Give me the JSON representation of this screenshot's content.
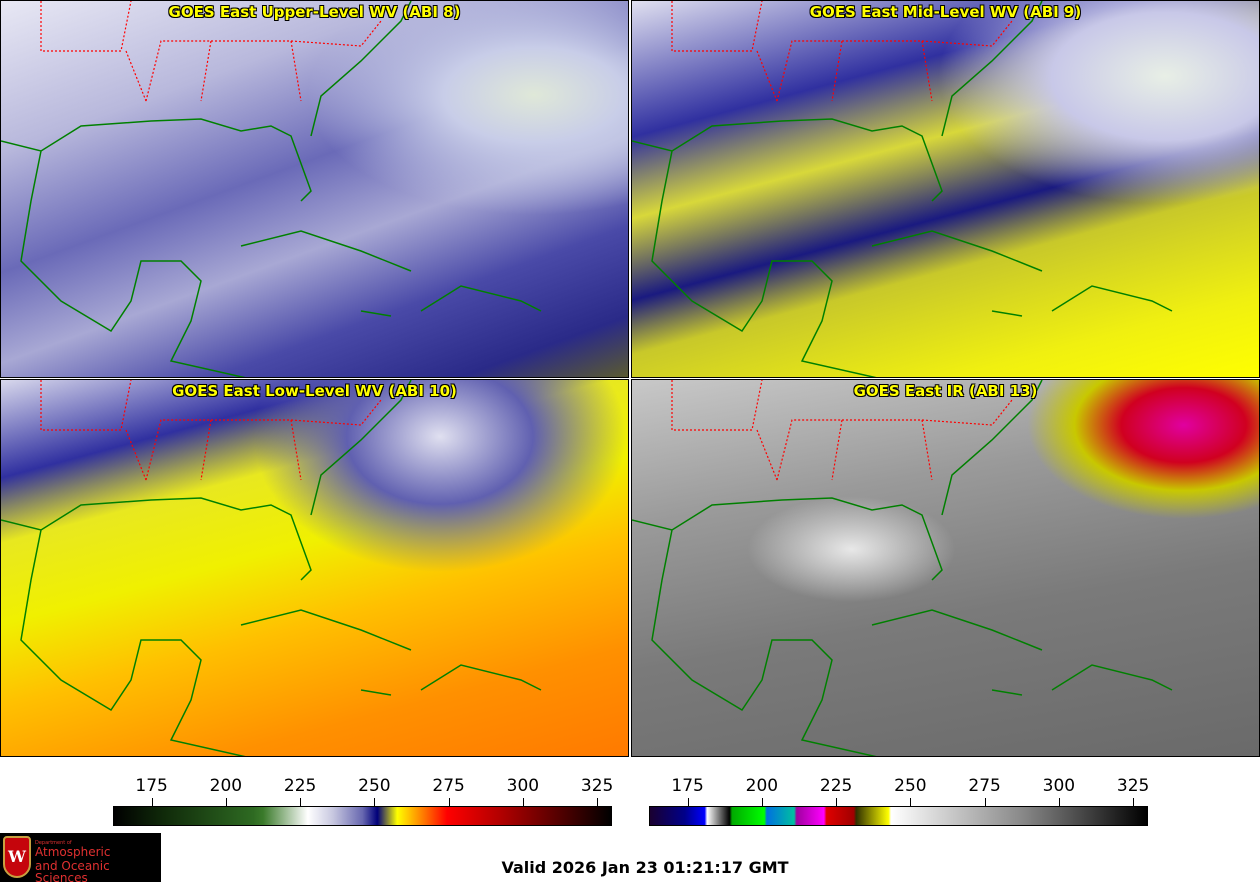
{
  "panels": [
    {
      "title": "GOES East Upper-Level WV (ABI 8)"
    },
    {
      "title": "GOES East Mid-Level WV (ABI 9)"
    },
    {
      "title": "GOES East Low-Level WV (ABI 10)"
    },
    {
      "title": "GOES East IR (ABI 13)"
    }
  ],
  "colorbars": [
    {
      "name": "water-vapor",
      "ticks": [
        175,
        200,
        225,
        250,
        275,
        300,
        325
      ],
      "range": [
        162,
        330
      ]
    },
    {
      "name": "infrared",
      "ticks": [
        175,
        200,
        225,
        250,
        275,
        300,
        325
      ],
      "range": [
        162,
        330
      ]
    }
  ],
  "logo": {
    "line1": "Department of",
    "line2": "Atmospheric",
    "line3": "and Oceanic Sciences",
    "emblem": "W"
  },
  "valid_time": "Valid 2026 Jan 23 01:21:17 GMT",
  "colors": {
    "title": "#ffff00",
    "coastline": "#008000",
    "state_borders": "#ff0000"
  }
}
